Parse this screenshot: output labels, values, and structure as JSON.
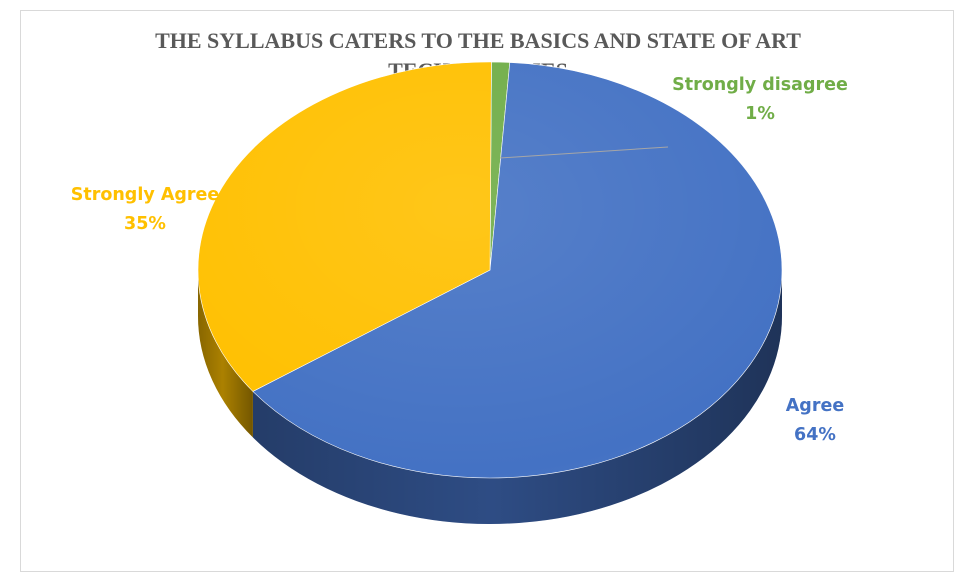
{
  "chart_data": {
    "type": "pie",
    "title": "THE SYLLABUS CATERS TO THE BASICS AND STATE OF ART TECHNOLOGIES",
    "style": "3d",
    "slices": [
      {
        "label": "Strongly disagree",
        "value": 1,
        "percent_label": "1%",
        "color": "#70ad47"
      },
      {
        "label": "Agree",
        "value": 64,
        "percent_label": "64%",
        "color": "#4472c4"
      },
      {
        "label": "Strongly Agree",
        "value": 35,
        "percent_label": "35%",
        "color": "#ffc000"
      }
    ],
    "label_colors": {
      "Strongly disagree": "#70ad47",
      "Agree": "#4472c4",
      "Strongly Agree": "#ffc000"
    },
    "leader_line_color": "#a6a6a6"
  }
}
